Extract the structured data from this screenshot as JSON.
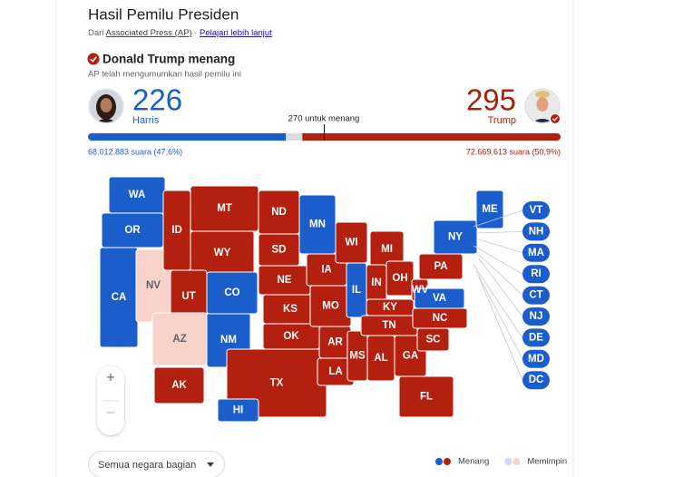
{
  "header": {
    "title": "Hasil Pemilu Presiden",
    "source_prefix": "Dari",
    "source": "Associated Press (AP)",
    "separator": "·",
    "learn_more": "Pelajari lebih lanjut"
  },
  "result": {
    "winner": "Donald Trump menang",
    "note": "AP telah mengumumkan hasil pemilu ini"
  },
  "threshold": {
    "value": 270,
    "label": "270 untuk menang"
  },
  "candidates": [
    {
      "name": "Harris",
      "electoral_votes": 226,
      "popular_vote": "68.012.883 suara (47,6%)",
      "color": "#1c5dcc"
    },
    {
      "name": "Trump",
      "electoral_votes": 295,
      "popular_vote": "72.669.613 suara (50,9%)",
      "color": "#b3200f"
    }
  ],
  "states": [
    {
      "abbr": "WA",
      "color": "#1c5dcc"
    },
    {
      "abbr": "OR",
      "color": "#1c5dcc"
    },
    {
      "abbr": "CA",
      "color": "#1c5dcc"
    },
    {
      "abbr": "NV",
      "color": "#f9d2c9"
    },
    {
      "abbr": "ID",
      "color": "#b3200f"
    },
    {
      "abbr": "MT",
      "color": "#b3200f"
    },
    {
      "abbr": "WY",
      "color": "#b3200f"
    },
    {
      "abbr": "UT",
      "color": "#b3200f"
    },
    {
      "abbr": "AZ",
      "color": "#f9d2c9"
    },
    {
      "abbr": "NM",
      "color": "#1c5dcc"
    },
    {
      "abbr": "CO",
      "color": "#1c5dcc"
    },
    {
      "abbr": "ND",
      "color": "#b3200f"
    },
    {
      "abbr": "SD",
      "color": "#b3200f"
    },
    {
      "abbr": "NE",
      "color": "#b3200f"
    },
    {
      "abbr": "KS",
      "color": "#b3200f"
    },
    {
      "abbr": "OK",
      "color": "#b3200f"
    },
    {
      "abbr": "TX",
      "color": "#b3200f"
    },
    {
      "abbr": "MN",
      "color": "#1c5dcc"
    },
    {
      "abbr": "IA",
      "color": "#b3200f"
    },
    {
      "abbr": "MO",
      "color": "#b3200f"
    },
    {
      "abbr": "AR",
      "color": "#b3200f"
    },
    {
      "abbr": "LA",
      "color": "#b3200f"
    },
    {
      "abbr": "WI",
      "color": "#b3200f"
    },
    {
      "abbr": "IL",
      "color": "#1c5dcc"
    },
    {
      "abbr": "MS",
      "color": "#b3200f"
    },
    {
      "abbr": "MI",
      "color": "#b3200f"
    },
    {
      "abbr": "IN",
      "color": "#b3200f"
    },
    {
      "abbr": "KY",
      "color": "#b3200f"
    },
    {
      "abbr": "TN",
      "color": "#b3200f"
    },
    {
      "abbr": "AL",
      "color": "#b3200f"
    },
    {
      "abbr": "GA",
      "color": "#b3200f"
    },
    {
      "abbr": "FL",
      "color": "#b3200f"
    },
    {
      "abbr": "OH",
      "color": "#b3200f"
    },
    {
      "abbr": "WV",
      "color": "#b3200f"
    },
    {
      "abbr": "VA",
      "color": "#1c5dcc"
    },
    {
      "abbr": "NC",
      "color": "#b3200f"
    },
    {
      "abbr": "SC",
      "color": "#b3200f"
    },
    {
      "abbr": "PA",
      "color": "#b3200f"
    },
    {
      "abbr": "NY",
      "color": "#1c5dcc"
    },
    {
      "abbr": "ME",
      "color": "#1c5dcc"
    },
    {
      "abbr": "AK",
      "color": "#b3200f"
    },
    {
      "abbr": "HI",
      "color": "#1c5dcc"
    }
  ],
  "small_states": [
    {
      "abbr": "VT",
      "color": "#1c5dcc"
    },
    {
      "abbr": "NH",
      "color": "#1c5dcc"
    },
    {
      "abbr": "MA",
      "color": "#1c5dcc"
    },
    {
      "abbr": "RI",
      "color": "#1c5dcc"
    },
    {
      "abbr": "CT",
      "color": "#1c5dcc"
    },
    {
      "abbr": "NJ",
      "color": "#1c5dcc"
    },
    {
      "abbr": "DE",
      "color": "#1c5dcc"
    },
    {
      "abbr": "MD",
      "color": "#1c5dcc"
    },
    {
      "abbr": "DC",
      "color": "#1c5dcc"
    }
  ],
  "map_controls": {
    "zoom_in": "+",
    "zoom_out": "−"
  },
  "filter": {
    "label": "Semua negara bagian"
  },
  "legend": [
    {
      "label": "Menang",
      "colors": [
        "#1c5dcc",
        "#b3200f"
      ]
    },
    {
      "label": "Memimpin",
      "colors": [
        "#c9dbf8",
        "#f9d2c9"
      ]
    }
  ]
}
